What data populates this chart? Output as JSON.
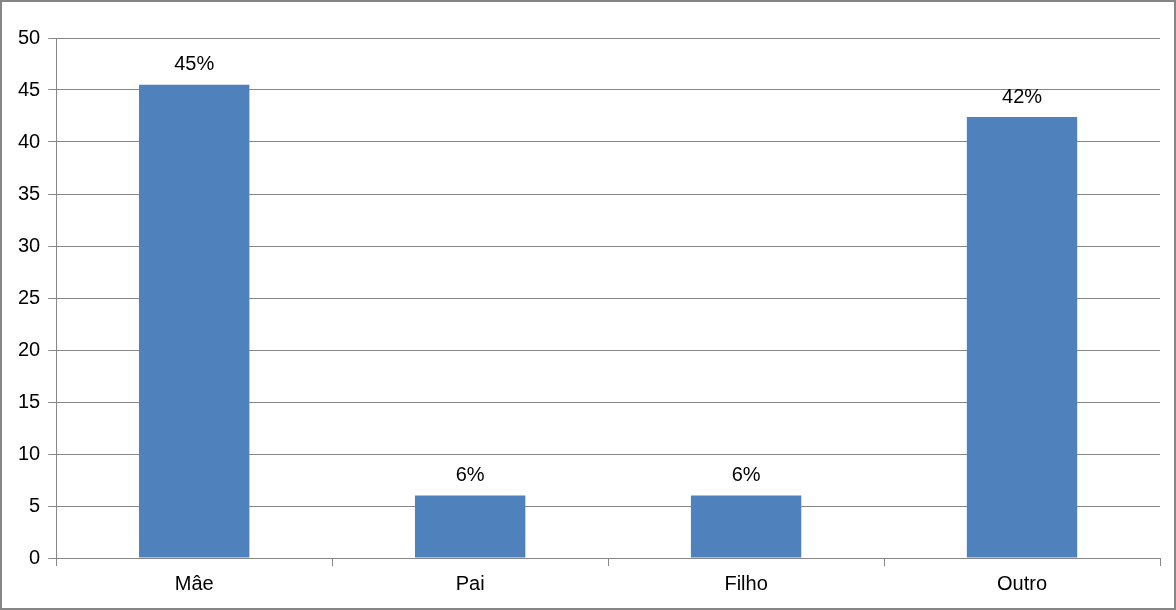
{
  "chart_data": {
    "type": "bar",
    "categories": [
      "Mâe",
      "Pai",
      "Filho",
      "Outro"
    ],
    "values": [
      45.5,
      6,
      6,
      42.4
    ],
    "value_labels": [
      "45%",
      "6%",
      "6%",
      "42%"
    ],
    "color": "#4f81bd",
    "ylim": [
      0,
      50
    ],
    "yticks": [
      0,
      5,
      10,
      15,
      20,
      25,
      30,
      35,
      40,
      45,
      50
    ],
    "grid": "y",
    "legend": false
  }
}
